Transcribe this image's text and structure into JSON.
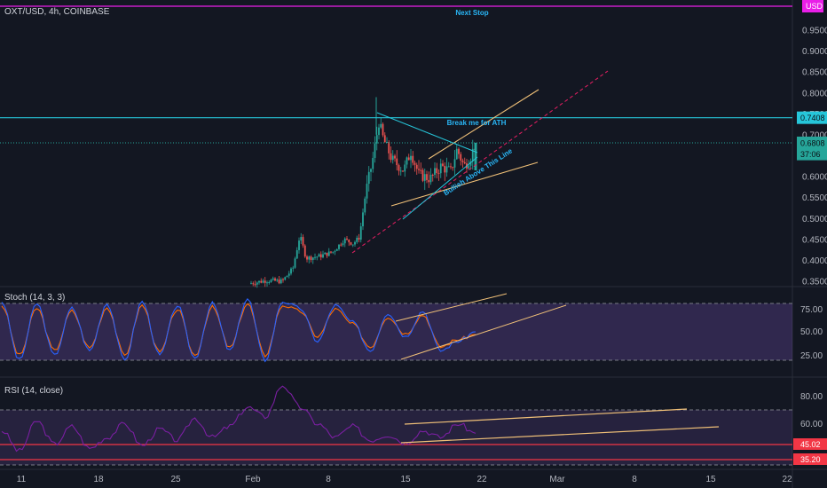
{
  "colors": {
    "background": "#131722",
    "up": "#26a69a",
    "down": "#ef5350",
    "cyan": "#26c6da",
    "trend": "#f0c078",
    "pink_line": "#e91e63",
    "magenta": "#e91ee8",
    "stoch_k": "#2962ff",
    "stoch_d": "#ff6d00",
    "rsi": "#7b1fa2",
    "band_fill": "#7e57c2",
    "red": "#f23645"
  },
  "header": {
    "symbol": "OXT/USD, 4h, COINBASE",
    "currency_badge": "USD"
  },
  "annotations": {
    "next_stop": "Next Stop",
    "break_ath": "Break me for ATH",
    "bullish": "Bullish Above This Line"
  },
  "stoch_panel": {
    "title": "Stoch (14, 3, 3)",
    "ticks": [
      "75.00",
      "50.00",
      "25.00"
    ]
  },
  "rsi_panel": {
    "title": "RSI (14, close)",
    "ticks": [
      "80.00",
      "60.00"
    ],
    "badges": [
      "45.02",
      "35.20"
    ]
  },
  "chart_data": [
    {
      "type": "candlestick",
      "title": "OXT/USD, 4h, COINBASE",
      "yaxis_ticks": [
        "0.9500",
        "0.9000",
        "0.8500",
        "0.8000",
        "0.7500",
        "0.7000",
        "0.6500",
        "0.6000",
        "0.5500",
        "0.5000",
        "0.4500",
        "0.4000",
        "0.3500"
      ],
      "ylim": [
        0.335,
        0.995
      ],
      "price_labels": [
        {
          "text": "0.7408",
          "value": 0.7408
        },
        {
          "text": "0.6808",
          "value": 0.6808
        },
        {
          "text": "37:06",
          "value": 0.654
        }
      ],
      "horizontal_levels": [
        {
          "value": 0.99,
          "color": "magenta"
        },
        {
          "value": 0.7408,
          "color": "cyan"
        }
      ],
      "x_ticks": [
        "11",
        "18",
        "25",
        "Feb",
        "8",
        "15",
        "22",
        "Mar",
        "8",
        "15",
        "22"
      ],
      "ohlc_sampled": [
        {
          "t": "Feb 1",
          "o": 0.345,
          "h": 0.36,
          "l": 0.338,
          "c": 0.35
        },
        {
          "t": "Feb 4",
          "o": 0.36,
          "h": 0.47,
          "l": 0.355,
          "c": 0.445
        },
        {
          "t": "Feb 7",
          "o": 0.42,
          "h": 0.45,
          "l": 0.41,
          "c": 0.44
        },
        {
          "t": "Feb 9",
          "o": 0.43,
          "h": 0.47,
          "l": 0.42,
          "c": 0.455
        },
        {
          "t": "Feb 10",
          "o": 0.455,
          "h": 0.62,
          "l": 0.45,
          "c": 0.61
        },
        {
          "t": "Feb 11",
          "o": 0.61,
          "h": 0.79,
          "l": 0.6,
          "c": 0.7
        },
        {
          "t": "Feb 13",
          "o": 0.69,
          "h": 0.72,
          "l": 0.58,
          "c": 0.62
        },
        {
          "t": "Feb 15",
          "o": 0.6,
          "h": 0.65,
          "l": 0.57,
          "c": 0.62
        },
        {
          "t": "Feb 18",
          "o": 0.62,
          "h": 0.69,
          "l": 0.61,
          "c": 0.66
        },
        {
          "t": "Feb 20",
          "o": 0.63,
          "h": 0.69,
          "l": 0.615,
          "c": 0.681
        }
      ]
    },
    {
      "type": "line",
      "title": "Stoch (14, 3, 3)",
      "ylim": [
        0,
        100
      ],
      "bands": [
        80,
        20
      ],
      "series": [
        {
          "name": "%K",
          "values": [
            82,
            20,
            80,
            25,
            75,
            30,
            80,
            20,
            82,
            25,
            78,
            22,
            80,
            30,
            85,
            20,
            82,
            75,
            40,
            78,
            60,
            30,
            70,
            45,
            72,
            30,
            40,
            50
          ]
        },
        {
          "name": "%D",
          "values": [
            78,
            25,
            75,
            30,
            72,
            33,
            76,
            25,
            78,
            28,
            74,
            25,
            76,
            33,
            80,
            25,
            78,
            72,
            45,
            74,
            58,
            34,
            66,
            48,
            68,
            34,
            42,
            47
          ]
        }
      ]
    },
    {
      "type": "line",
      "title": "RSI (14, close)",
      "ylim": [
        25,
        90
      ],
      "bands": [
        70,
        30
      ],
      "series": [
        {
          "name": "RSI",
          "values": [
            55,
            40,
            62,
            45,
            58,
            42,
            50,
            60,
            44,
            56,
            48,
            64,
            50,
            58,
            72,
            65,
            88,
            72,
            60,
            50,
            58,
            48,
            52,
            46,
            55,
            50,
            60,
            53
          ]
        }
      ]
    }
  ]
}
